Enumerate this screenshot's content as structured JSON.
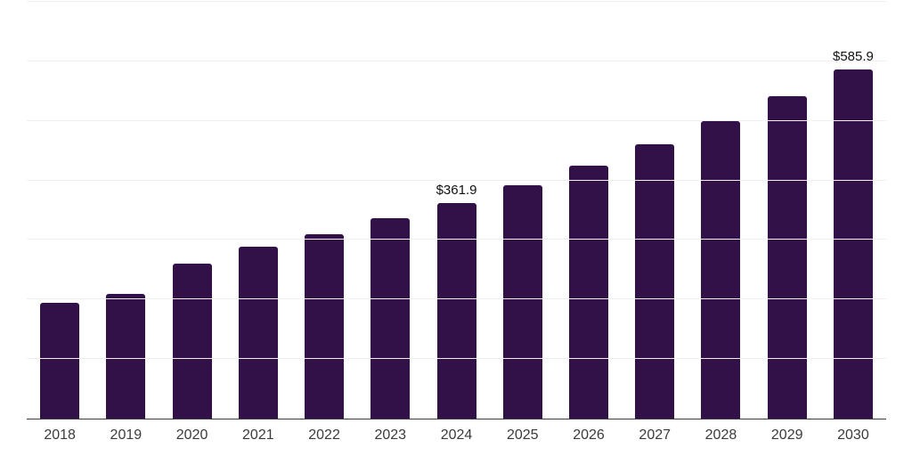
{
  "chart_data": {
    "type": "bar",
    "title": "",
    "categories": [
      "2018",
      "2019",
      "2020",
      "2021",
      "2022",
      "2023",
      "2024",
      "2025",
      "2026",
      "2027",
      "2028",
      "2029",
      "2030"
    ],
    "values": [
      195,
      210,
      261,
      288,
      310,
      336,
      361.9,
      392,
      425,
      460,
      499,
      541,
      585.9
    ],
    "bar_labels": [
      "",
      "",
      "",
      "",
      "",
      "",
      "$361.9",
      "",
      "",
      "",
      "",
      "",
      "$585.9"
    ],
    "ylim": [
      0,
      700
    ],
    "grid_step": 100,
    "grid": true,
    "legend": false,
    "y_tick_labels": "none",
    "xlabel": "",
    "ylabel": "",
    "colors": {
      "bar": "#311148",
      "grid_line": "#f0f0f0",
      "axis_line": "#3d3d3d",
      "tick_label": "#3b3b3b",
      "value_label": "#111111",
      "background": "#ffffff"
    }
  }
}
